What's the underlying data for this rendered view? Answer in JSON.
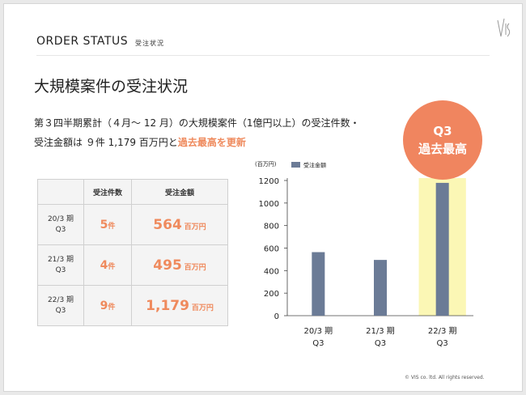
{
  "header": {
    "title": "ORDER STATUS",
    "subtitle": "受注状況"
  },
  "main_title": "大規模案件の受注状況",
  "body": {
    "line1": "第３四半期累計（４月～ 12 月）の大規模案件（1億円以上）の受注件数・",
    "line2_prefix": "受注金額は ９件 1,179 百万円と",
    "line2_highlight": "過去最高を更新"
  },
  "table": {
    "headers": [
      "",
      "受注件数",
      "受注金額"
    ],
    "rows": [
      {
        "period_line1": "20/3 期",
        "period_line2": "Q3",
        "count": "5",
        "count_unit": "件",
        "amount": "564",
        "amount_unit": "百万円"
      },
      {
        "period_line1": "21/3 期",
        "period_line2": "Q3",
        "count": "4",
        "count_unit": "件",
        "amount": "495",
        "amount_unit": "百万円"
      },
      {
        "period_line1": "22/3 期",
        "period_line2": "Q3",
        "count": "9",
        "count_unit": "件",
        "amount": "1,179",
        "amount_unit": "百万円"
      }
    ]
  },
  "badge": {
    "line1": "Q3",
    "line2": "過去最高"
  },
  "chart_data": {
    "type": "bar",
    "categories": [
      [
        "20/3 期",
        "Q3"
      ],
      [
        "21/3 期",
        "Q3"
      ],
      [
        "22/3 期",
        "Q3"
      ]
    ],
    "series": [
      {
        "name": "受注金額",
        "values": [
          564,
          495,
          1179
        ],
        "color": "#6b7b96"
      }
    ],
    "unit_label": "(百万円)",
    "ylim": [
      0,
      1200
    ],
    "yticks": [
      0,
      200,
      400,
      600,
      800,
      1000,
      1200
    ],
    "highlight_index": 2,
    "highlight_color": "#fbf7b5",
    "legend_position": "top-left"
  },
  "footer": "© VIS co. ltd. All rights reserved."
}
